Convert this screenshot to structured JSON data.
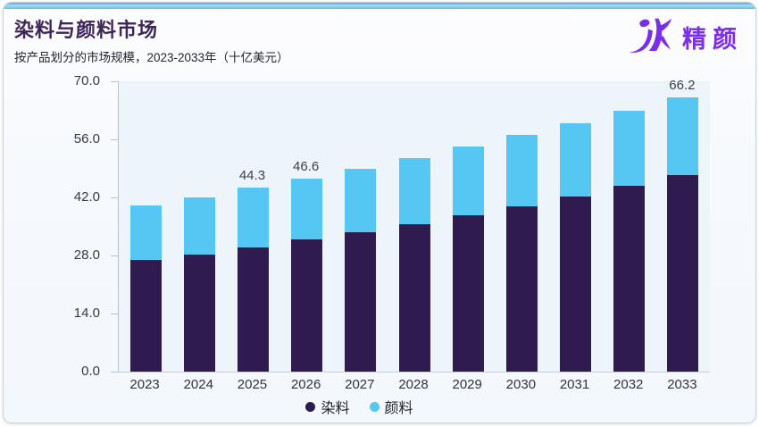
{
  "header": {
    "title": "染料与颜料市场",
    "subtitle": "按产品划分的市场规模，2023-2033年（十亿美元）",
    "logo_text": "精颜",
    "logo_color": "#7b2ee8"
  },
  "colors": {
    "dye": "#2f1b4d",
    "pigment": "#56c7f2",
    "plot_background": "#edf5fa",
    "accent_strip": "#5bc0ec",
    "card_border": "#c9d1d9"
  },
  "chart_data": {
    "type": "bar",
    "stacked": true,
    "title": "染料与颜料市场",
    "subtitle": "按产品划分的市场规模，2023-2033年（十亿美元）",
    "categories": [
      "2023",
      "2024",
      "2025",
      "2026",
      "2027",
      "2028",
      "2029",
      "2030",
      "2031",
      "2032",
      "2033"
    ],
    "series": [
      {
        "key": "dye",
        "name": "染料",
        "color": "#2f1b4d",
        "values": [
          27.0,
          28.3,
          30.0,
          31.8,
          33.6,
          35.5,
          37.6,
          39.8,
          42.2,
          44.7,
          47.3
        ]
      },
      {
        "key": "pigment",
        "name": "颜料",
        "color": "#56c7f2",
        "values": [
          13.1,
          13.8,
          14.3,
          14.8,
          15.4,
          16.0,
          16.6,
          17.2,
          17.7,
          18.3,
          18.9
        ]
      }
    ],
    "totals": [
      40.1,
      42.1,
      44.3,
      46.6,
      49.0,
      51.5,
      54.2,
      57.0,
      59.9,
      63.0,
      66.2
    ],
    "point_labels": [
      "",
      "",
      "44.3",
      "46.6",
      "",
      "",
      "",
      "",
      "",
      "",
      "66.2"
    ],
    "yticks": [
      "0.0",
      "14.0",
      "28.0",
      "42.0",
      "56.0",
      "70.0"
    ],
    "ylim": [
      0,
      70
    ],
    "grid": false,
    "legend_position": "bottom"
  }
}
